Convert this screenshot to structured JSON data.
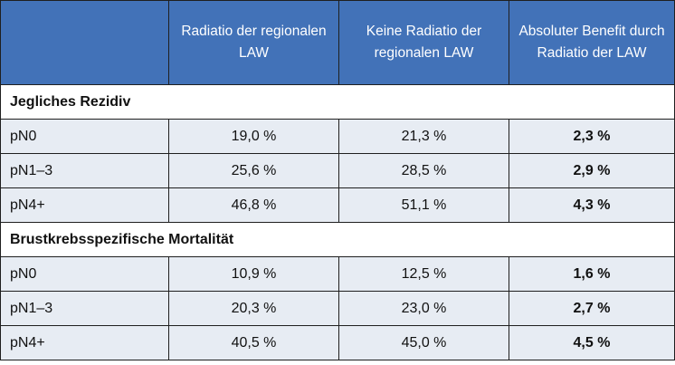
{
  "header": {
    "col0": "",
    "col1": "Radiatio der regionalen LAW",
    "col2": "Keine Radiatio der regionalen LAW",
    "col3": "Absoluter Benefit durch Radiatio der LAW"
  },
  "sections": [
    {
      "title": "Jegliches Rezidiv",
      "rows": [
        {
          "label": "pN0",
          "radiatio": "19,0 %",
          "keine": "21,3 %",
          "benefit": "2,3 %"
        },
        {
          "label": "pN1–3",
          "radiatio": "25,6 %",
          "keine": "28,5 %",
          "benefit": "2,9 %"
        },
        {
          "label": "pN4+",
          "radiatio": "46,8 %",
          "keine": "51,1 %",
          "benefit": "4,3 %"
        }
      ]
    },
    {
      "title": "Brustkrebsspezifische Mortalität",
      "rows": [
        {
          "label": "pN0",
          "radiatio": "10,9 %",
          "keine": "12,5 %",
          "benefit": "1,6 %"
        },
        {
          "label": "pN1–3",
          "radiatio": "20,3 %",
          "keine": "23,0 %",
          "benefit": "2,7 %"
        },
        {
          "label": "pN4+",
          "radiatio": "40,5 %",
          "keine": "45,0 %",
          "benefit": "4,5 %"
        }
      ]
    }
  ],
  "colors": {
    "header_bg": "#4272b8",
    "header_text": "#ffffff",
    "row_bg": "#e7ecf3",
    "border": "#1f1f1f"
  }
}
